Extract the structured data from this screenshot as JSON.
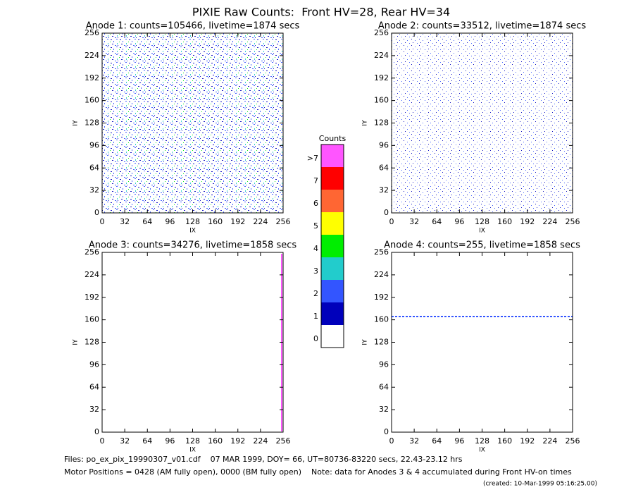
{
  "title": "PIXIE Raw Counts:  Front HV=28, Rear HV=34",
  "panels": [
    {
      "title": "Anode 1: counts=105466, livetime=1874 secs",
      "xlabel": "IX",
      "ylabel": "IY",
      "xlim": [
        0,
        256
      ],
      "ylim": [
        0,
        256
      ],
      "xticks": [
        0,
        32,
        64,
        96,
        128,
        160,
        192,
        224,
        256
      ],
      "yticks": [
        0,
        32,
        64,
        96,
        128,
        160,
        192,
        224,
        256
      ]
    },
    {
      "title": "Anode 2: counts=33512, livetime=1874 secs",
      "xlabel": "IX",
      "ylabel": "IY",
      "xlim": [
        0,
        256
      ],
      "ylim": [
        0,
        256
      ],
      "xticks": [
        0,
        32,
        64,
        96,
        128,
        160,
        192,
        224,
        256
      ],
      "yticks": [
        0,
        32,
        64,
        96,
        128,
        160,
        192,
        224,
        256
      ]
    },
    {
      "title": "Anode 3: counts=34276, livetime=1858 secs",
      "xlabel": "IX",
      "ylabel": "IY",
      "xlim": [
        0,
        256
      ],
      "ylim": [
        0,
        256
      ],
      "xticks": [
        0,
        32,
        64,
        96,
        128,
        160,
        192,
        224,
        256
      ],
      "yticks": [
        0,
        32,
        64,
        96,
        128,
        160,
        192,
        224,
        256
      ]
    },
    {
      "title": "Anode 4: counts=255, livetime=1858 secs",
      "xlabel": "IX",
      "ylabel": "IY",
      "xlim": [
        0,
        256
      ],
      "ylim": [
        0,
        256
      ],
      "xticks": [
        0,
        32,
        64,
        96,
        128,
        160,
        192,
        224,
        256
      ],
      "yticks": [
        0,
        32,
        64,
        96,
        128,
        160,
        192,
        224,
        256
      ]
    }
  ],
  "colorbar": {
    "title": "Counts",
    "levels": [
      {
        "label": "0",
        "color": "#ffffff"
      },
      {
        "label": "1",
        "color": "#0000bb"
      },
      {
        "label": "2",
        "color": "#3355ff"
      },
      {
        "label": "3",
        "color": "#22cccc"
      },
      {
        "label": "4",
        "color": "#00ee00"
      },
      {
        "label": "5",
        "color": "#ffff00"
      },
      {
        "label": "6",
        "color": "#ff6633"
      },
      {
        "label": "7",
        "color": "#ff0000"
      },
      {
        "label": ">7",
        "color": "#ff55ff"
      }
    ]
  },
  "footer": {
    "files": "Files: po_ex_pix_19990307_v01.cdf    07 MAR 1999, DOY= 66, UT=80736-83220 secs, 22.43-23.12 hrs",
    "motor": "Motor Positions = 0428 (AM fully open), 0000 (BM fully open)    Note: data for Anodes 3 & 4 accumulated during Front HV-on times",
    "created": "(created: 10-Mar-1999 05:16:25.00)"
  }
}
